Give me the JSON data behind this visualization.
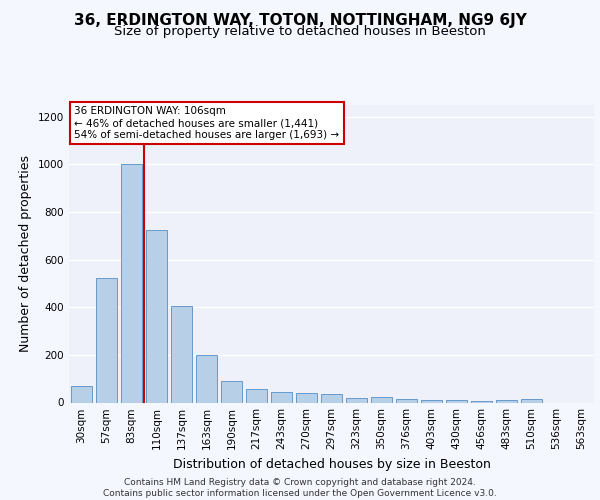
{
  "title1": "36, ERDINGTON WAY, TOTON, NOTTINGHAM, NG9 6JY",
  "title2": "Size of property relative to detached houses in Beeston",
  "xlabel": "Distribution of detached houses by size in Beeston",
  "ylabel": "Number of detached properties",
  "categories": [
    "30sqm",
    "57sqm",
    "83sqm",
    "110sqm",
    "137sqm",
    "163sqm",
    "190sqm",
    "217sqm",
    "243sqm",
    "270sqm",
    "297sqm",
    "323sqm",
    "350sqm",
    "376sqm",
    "403sqm",
    "430sqm",
    "456sqm",
    "483sqm",
    "510sqm",
    "536sqm",
    "563sqm"
  ],
  "values": [
    70,
    525,
    1000,
    725,
    405,
    200,
    90,
    58,
    45,
    38,
    35,
    18,
    22,
    15,
    10,
    10,
    8,
    10,
    14,
    0,
    0
  ],
  "bar_color": "#b8cfe8",
  "bar_edge_color": "#6699cc",
  "ref_line_color": "#cc0000",
  "ref_line_xindex": 2,
  "annotation_text": "36 ERDINGTON WAY: 106sqm\n← 46% of detached houses are smaller (1,441)\n54% of semi-detached houses are larger (1,693) →",
  "annotation_box_color": "#ffffff",
  "annotation_box_edge": "#cc0000",
  "ylim": [
    0,
    1250
  ],
  "yticks": [
    0,
    200,
    400,
    600,
    800,
    1000,
    1200
  ],
  "footer": "Contains HM Land Registry data © Crown copyright and database right 2024.\nContains public sector information licensed under the Open Government Licence v3.0.",
  "bg_color": "#f5f7ff",
  "plot_bg_color": "#eef1fa",
  "grid_color": "#ffffff",
  "title1_fontsize": 11,
  "title2_fontsize": 9.5,
  "xlabel_fontsize": 9,
  "ylabel_fontsize": 9,
  "tick_fontsize": 7.5,
  "footer_fontsize": 6.5
}
